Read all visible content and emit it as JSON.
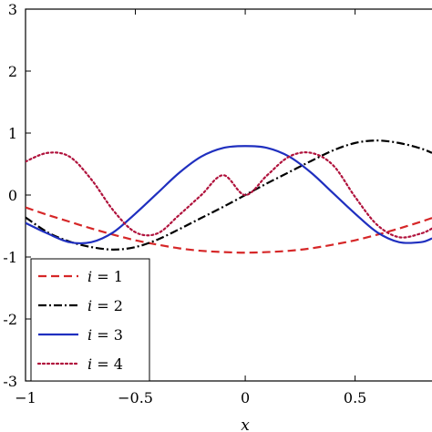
{
  "chart_data": {
    "type": "line",
    "xlabel": "x",
    "ylabel": "",
    "xlim": [
      -1,
      0.85
    ],
    "ylim": [
      -3,
      3
    ],
    "x_ticks": [
      {
        "value": -1,
        "label": "−1"
      },
      {
        "value": -0.5,
        "label": "−0.5"
      },
      {
        "value": 0,
        "label": "0"
      },
      {
        "value": 0.5,
        "label": "0.5"
      }
    ],
    "y_ticks": [
      {
        "value": -3,
        "label": "-3"
      },
      {
        "value": -2,
        "label": "-2"
      },
      {
        "value": -1,
        "label": "-1"
      },
      {
        "value": 0,
        "label": "0"
      },
      {
        "value": 1,
        "label": "1"
      },
      {
        "value": 2,
        "label": "2"
      },
      {
        "value": 3,
        "label": "3"
      }
    ],
    "grid": false,
    "legend_position": "bottom-left",
    "x": [
      -1,
      -0.9,
      -0.8,
      -0.7,
      -0.6,
      -0.5,
      -0.4,
      -0.3,
      -0.2,
      -0.1,
      0,
      0.1,
      0.2,
      0.3,
      0.4,
      0.5,
      0.6,
      0.7,
      0.8,
      0.85
    ],
    "series": [
      {
        "name": "i = 1",
        "var": "i",
        "rest": " = 1",
        "color": "#d62728",
        "dash": "dashed",
        "values": [
          -0.2,
          -0.32,
          -0.43,
          -0.54,
          -0.64,
          -0.73,
          -0.8,
          -0.86,
          -0.9,
          -0.92,
          -0.93,
          -0.92,
          -0.9,
          -0.86,
          -0.8,
          -0.73,
          -0.64,
          -0.54,
          -0.43,
          -0.37
        ]
      },
      {
        "name": "i = 2",
        "var": "i",
        "rest": " = 2",
        "color": "#000000",
        "dash": "dashdot",
        "values": [
          -0.36,
          -0.6,
          -0.75,
          -0.84,
          -0.88,
          -0.84,
          -0.72,
          -0.55,
          -0.37,
          -0.19,
          0.0,
          0.19,
          0.37,
          0.55,
          0.72,
          0.84,
          0.88,
          0.84,
          0.75,
          0.68
        ]
      },
      {
        "name": "i = 3",
        "var": "i",
        "rest": " = 3",
        "color": "#1f2fbf",
        "dash": "solid",
        "values": [
          -0.45,
          -0.62,
          -0.76,
          -0.76,
          -0.6,
          -0.3,
          0.03,
          0.36,
          0.62,
          0.76,
          0.79,
          0.76,
          0.62,
          0.36,
          0.03,
          -0.3,
          -0.6,
          -0.76,
          -0.76,
          -0.7
        ]
      },
      {
        "name": "i = 4",
        "var": "i",
        "rest": " = 4",
        "color": "#b0123c",
        "dash": "dotted",
        "values": [
          0.54,
          0.68,
          0.62,
          0.25,
          -0.25,
          -0.6,
          -0.62,
          -0.32,
          0.0,
          0.32,
          0.0,
          0.32,
          0.62,
          0.68,
          0.48,
          -0.03,
          -0.48,
          -0.68,
          -0.62,
          -0.54
        ]
      }
    ]
  }
}
